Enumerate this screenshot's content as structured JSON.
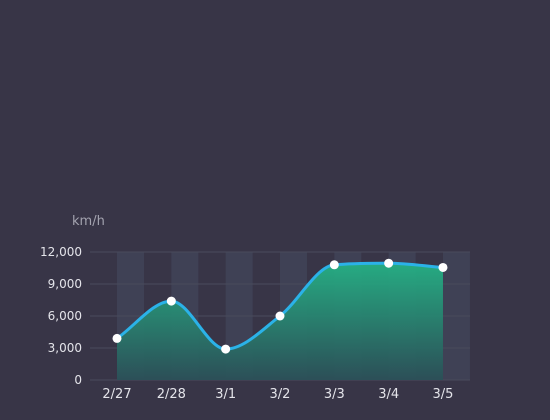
{
  "chart_data": {
    "type": "area",
    "categories": [
      "2/27",
      "2/28",
      "3/1",
      "3/2",
      "3/3",
      "3/4",
      "3/5"
    ],
    "series": [
      {
        "values": [
          3900,
          7400,
          2900,
          6000,
          10800,
          10950,
          10550
        ]
      }
    ],
    "ylabel": "km/h",
    "ylim": [
      0,
      12000
    ],
    "yticks": [
      0,
      3000,
      6000,
      9000,
      12000
    ],
    "ytick_labels": [
      "0",
      "3,000",
      "6,000",
      "9,000",
      "12,000"
    ],
    "grid": true,
    "colors": {
      "background": "#383547",
      "line": "#2bb2e8",
      "area_top": "#25b185",
      "area_bottom": "#2b5058",
      "band": "#414659",
      "grid": "#4a4b5c",
      "point_fill": "#ffffff",
      "tick_text": "#e4e4ea",
      "unit_text": "#a3a3af"
    }
  }
}
